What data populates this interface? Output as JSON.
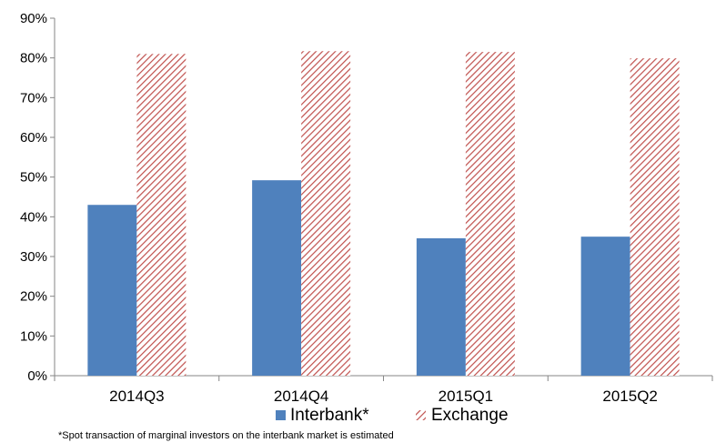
{
  "chart_data": {
    "type": "bar",
    "categories": [
      "2014Q3",
      "2014Q4",
      "2015Q1",
      "2015Q2"
    ],
    "series": [
      {
        "name": "Interbank*",
        "values": [
          43,
          49.2,
          34.6,
          35.0
        ],
        "color": "#4f81bd",
        "pattern": "solid"
      },
      {
        "name": "Exchange",
        "values": [
          81.0,
          81.7,
          81.5,
          79.9
        ],
        "color": "#c0504d",
        "pattern": "diagonal-hatch"
      }
    ],
    "y_ticks": [
      "0%",
      "10%",
      "20%",
      "30%",
      "40%",
      "50%",
      "60%",
      "70%",
      "80%",
      "90%"
    ],
    "ylim": [
      0,
      90
    ],
    "unit": "%",
    "grid": false,
    "legend_position": "bottom",
    "footnote": "*Spot transaction of marginal investors on the interbank market is estimated"
  }
}
